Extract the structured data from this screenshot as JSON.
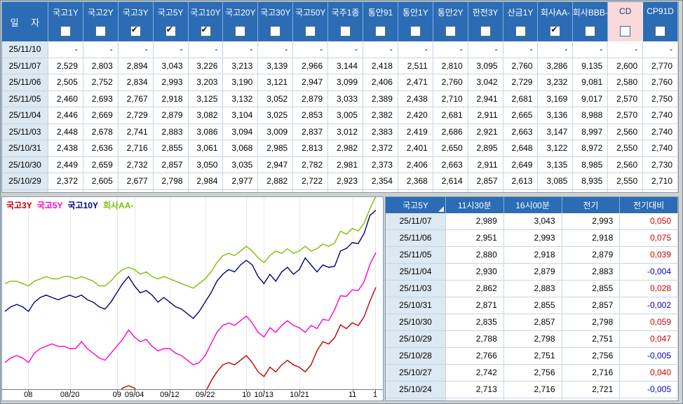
{
  "colors": {
    "header_blue": "#2B6CB5",
    "date_cell": "#DCE8F2",
    "highlight_pink": "#FAD9DA",
    "up_red": "#CC0000",
    "down_blue": "#0000CC"
  },
  "rates_table": {
    "date_header": "일 자",
    "columns": [
      {
        "label": "국고1Y",
        "checked": false
      },
      {
        "label": "국고2Y",
        "checked": false
      },
      {
        "label": "국고3Y",
        "checked": true
      },
      {
        "label": "국고5Y",
        "checked": true
      },
      {
        "label": "국고10Y",
        "checked": true
      },
      {
        "label": "국고20Y",
        "checked": false
      },
      {
        "label": "국고30Y",
        "checked": false
      },
      {
        "label": "국고50Y",
        "checked": false
      },
      {
        "label": "국주1종",
        "checked": false
      },
      {
        "label": "통안91",
        "checked": false
      },
      {
        "label": "통안1Y",
        "checked": false
      },
      {
        "label": "통안2Y",
        "checked": false
      },
      {
        "label": "한전3Y",
        "checked": false
      },
      {
        "label": "산금1Y",
        "checked": false
      },
      {
        "label": "회사AA-",
        "checked": true
      },
      {
        "label": "회사BBB-",
        "checked": false
      },
      {
        "label": "CD",
        "checked": false,
        "highlight": true
      },
      {
        "label": "CP91D",
        "checked": false
      }
    ],
    "rows": [
      {
        "date": "25/11/10",
        "values": [
          "-",
          "-",
          "-",
          "-",
          "-",
          "-",
          "-",
          "-",
          "-",
          "-",
          "-",
          "-",
          "-",
          "-",
          "-",
          "-",
          "-",
          "-"
        ]
      },
      {
        "date": "25/11/07",
        "values": [
          "2,529",
          "2,803",
          "2,894",
          "3,043",
          "3,226",
          "3,213",
          "3,139",
          "2,966",
          "3,144",
          "2,418",
          "2,511",
          "2,810",
          "3,095",
          "2,760",
          "3,286",
          "9,135",
          "2,600",
          "2,770"
        ]
      },
      {
        "date": "25/11/06",
        "values": [
          "2,505",
          "2,752",
          "2,834",
          "2,993",
          "3,203",
          "3,190",
          "3,121",
          "2,947",
          "3,099",
          "2,406",
          "2,471",
          "2,760",
          "3,042",
          "2,729",
          "3,232",
          "9,081",
          "2,580",
          "2,760"
        ]
      },
      {
        "date": "25/11/05",
        "values": [
          "2,460",
          "2,693",
          "2,767",
          "2,918",
          "3,125",
          "3,132",
          "3,052",
          "2,879",
          "3,033",
          "2,389",
          "2,438",
          "2,710",
          "2,941",
          "2,681",
          "3,169",
          "9,017",
          "2,570",
          "2,750"
        ]
      },
      {
        "date": "25/11/04",
        "values": [
          "2,446",
          "2,669",
          "2,729",
          "2,879",
          "3,082",
          "3,104",
          "3,025",
          "2,853",
          "3,005",
          "2,382",
          "2,420",
          "2,681",
          "2,911",
          "2,665",
          "3,136",
          "8,988",
          "2,570",
          "2,740"
        ]
      },
      {
        "date": "25/11/03",
        "values": [
          "2,448",
          "2,678",
          "2,741",
          "2,883",
          "3,086",
          "3,094",
          "3,009",
          "2,837",
          "3,012",
          "2,383",
          "2,419",
          "2,686",
          "2,921",
          "2,663",
          "3,147",
          "8,997",
          "2,560",
          "2,740"
        ]
      },
      {
        "date": "25/10/31",
        "values": [
          "2,438",
          "2,636",
          "2,716",
          "2,855",
          "3,061",
          "3,068",
          "2,985",
          "2,813",
          "2,982",
          "2,372",
          "2,401",
          "2,650",
          "2,895",
          "2,648",
          "3,122",
          "8,972",
          "2,550",
          "2,740"
        ]
      },
      {
        "date": "25/10/30",
        "values": [
          "2,449",
          "2,659",
          "2,732",
          "2,857",
          "3,050",
          "3,035",
          "2,947",
          "2,782",
          "2,981",
          "2,373",
          "2,406",
          "2,663",
          "2,911",
          "2,649",
          "3,135",
          "8,985",
          "2,560",
          "2,730"
        ]
      },
      {
        "date": "25/10/29",
        "values": [
          "2,372",
          "2,605",
          "2,677",
          "2,798",
          "2,984",
          "2,977",
          "2,882",
          "2,722",
          "2,923",
          "2,354",
          "2,368",
          "2,614",
          "2,857",
          "2,613",
          "3,085",
          "8,935",
          "2,550",
          "2,710"
        ]
      },
      {
        "date": "",
        "values": [
          "",
          "",
          "",
          "",
          "",
          "",
          "",
          "",
          "",
          "",
          "",
          "",
          "",
          "",
          "",
          "",
          "",
          ""
        ]
      }
    ]
  },
  "chart_data": {
    "type": "line",
    "title": "",
    "xlabel": "",
    "ylabel": "",
    "ylim": [
      2.452,
      3.282
    ],
    "grid": "vertical",
    "legend_position": "top-left",
    "x_ticks": [
      {
        "label": "08",
        "f": 0.063
      },
      {
        "label": "08/20",
        "f": 0.175
      },
      {
        "label": "09",
        "f": 0.302
      },
      {
        "label": "09/04",
        "f": 0.349
      },
      {
        "label": "09/12",
        "f": 0.444
      },
      {
        "label": "09/22",
        "f": 0.54
      },
      {
        "label": "10",
        "f": 0.651
      },
      {
        "label": "10/13",
        "f": 0.698
      },
      {
        "label": "10/21",
        "f": 0.794
      },
      {
        "label": "11",
        "f": 0.937
      },
      {
        "label": "1",
        "f": 0.998
      }
    ],
    "series": [
      {
        "name": "국고3Y",
        "color": "#C00000",
        "values": [
          2.4,
          2.41,
          2.42,
          2.41,
          2.39,
          2.42,
          2.43,
          2.44,
          2.43,
          2.43,
          2.44,
          2.43,
          2.42,
          2.44,
          2.42,
          2.4,
          2.39,
          2.38,
          2.41,
          2.43,
          2.46,
          2.47,
          2.46,
          2.43,
          2.44,
          2.42,
          2.4,
          2.41,
          2.41,
          2.4,
          2.39,
          2.38,
          2.38,
          2.4,
          2.44,
          2.49,
          2.53,
          2.56,
          2.57,
          2.56,
          2.58,
          2.6,
          2.57,
          2.53,
          2.51,
          2.55,
          2.53,
          2.56,
          2.58,
          2.56,
          2.55,
          2.53,
          2.56,
          2.62,
          2.66,
          2.65,
          2.677,
          2.732,
          2.716,
          2.741,
          2.729,
          2.767,
          2.834,
          2.894
        ]
      },
      {
        "name": "국고5Y",
        "color": "#FF00CC",
        "values": [
          2.57,
          2.59,
          2.6,
          2.59,
          2.57,
          2.61,
          2.63,
          2.64,
          2.65,
          2.64,
          2.64,
          2.63,
          2.63,
          2.66,
          2.63,
          2.61,
          2.59,
          2.58,
          2.61,
          2.64,
          2.67,
          2.71,
          2.68,
          2.66,
          2.67,
          2.64,
          2.62,
          2.63,
          2.63,
          2.61,
          2.6,
          2.58,
          2.56,
          2.57,
          2.6,
          2.65,
          2.7,
          2.73,
          2.74,
          2.73,
          2.75,
          2.77,
          2.74,
          2.7,
          2.68,
          2.72,
          2.7,
          2.73,
          2.75,
          2.73,
          2.72,
          2.7,
          2.73,
          2.716,
          2.756,
          2.751,
          2.798,
          2.857,
          2.855,
          2.883,
          2.879,
          2.918,
          2.993,
          3.043
        ]
      },
      {
        "name": "국고10Y",
        "color": "#000080",
        "values": [
          2.79,
          2.81,
          2.82,
          2.81,
          2.79,
          2.83,
          2.85,
          2.86,
          2.85,
          2.84,
          2.85,
          2.86,
          2.85,
          2.86,
          2.84,
          2.83,
          2.81,
          2.8,
          2.83,
          2.87,
          2.91,
          2.94,
          2.9,
          2.87,
          2.88,
          2.86,
          2.83,
          2.85,
          2.83,
          2.81,
          2.8,
          2.78,
          2.76,
          2.79,
          2.83,
          2.87,
          2.92,
          2.95,
          2.97,
          2.96,
          2.99,
          3.01,
          2.99,
          2.94,
          2.91,
          2.95,
          2.92,
          2.96,
          2.98,
          2.95,
          2.97,
          3.02,
          2.99,
          2.96,
          2.99,
          2.98,
          2.984,
          3.05,
          3.061,
          3.086,
          3.082,
          3.125,
          3.203,
          3.226
        ]
      },
      {
        "name": "회사AA-",
        "color": "#7DC000",
        "values": [
          2.91,
          2.92,
          2.92,
          2.91,
          2.9,
          2.92,
          2.93,
          2.94,
          2.93,
          2.93,
          2.94,
          2.94,
          2.93,
          2.94,
          2.93,
          2.92,
          2.9,
          2.9,
          2.92,
          2.95,
          2.97,
          2.98,
          2.97,
          2.95,
          2.96,
          2.94,
          2.93,
          2.94,
          2.93,
          2.92,
          2.91,
          2.9,
          2.89,
          2.91,
          2.93,
          2.96,
          3.0,
          3.03,
          3.04,
          3.03,
          3.05,
          3.07,
          3.05,
          3.02,
          3.0,
          3.03,
          3.05,
          3.04,
          3.06,
          3.04,
          3.05,
          3.07,
          3.05,
          3.06,
          3.08,
          3.07,
          3.085,
          3.135,
          3.122,
          3.147,
          3.136,
          3.169,
          3.232,
          3.286
        ]
      }
    ]
  },
  "detail_table": {
    "selected_series": "국고5Y",
    "columns": [
      "11시30분",
      "16시00분",
      "전기",
      "전기대비"
    ],
    "rows": [
      {
        "date": "25/11/07",
        "values": [
          "2,989",
          "3,043",
          "2,993"
        ],
        "change": "0,050"
      },
      {
        "date": "25/11/06",
        "values": [
          "2,951",
          "2,993",
          "2,918"
        ],
        "change": "0,075"
      },
      {
        "date": "25/11/05",
        "values": [
          "2,880",
          "2,918",
          "2,879"
        ],
        "change": "0,039"
      },
      {
        "date": "25/11/04",
        "values": [
          "2,930",
          "2,879",
          "2,883"
        ],
        "change": "-0,004"
      },
      {
        "date": "25/11/03",
        "values": [
          "2,862",
          "2,883",
          "2,855"
        ],
        "change": "0,028"
      },
      {
        "date": "25/10/31",
        "values": [
          "2,871",
          "2,855",
          "2,857"
        ],
        "change": "-0,002"
      },
      {
        "date": "25/10/30",
        "values": [
          "2,835",
          "2,857",
          "2,798"
        ],
        "change": "0,059"
      },
      {
        "date": "25/10/29",
        "values": [
          "2,788",
          "2,798",
          "2,751"
        ],
        "change": "0,047"
      },
      {
        "date": "25/10/28",
        "values": [
          "2,766",
          "2,751",
          "2,756"
        ],
        "change": "-0,005"
      },
      {
        "date": "25/10/27",
        "values": [
          "2,742",
          "2,756",
          "2,716"
        ],
        "change": "0,040"
      },
      {
        "date": "25/10/24",
        "values": [
          "2,713",
          "2,716",
          "2,721"
        ],
        "change": "-0,005"
      }
    ]
  }
}
